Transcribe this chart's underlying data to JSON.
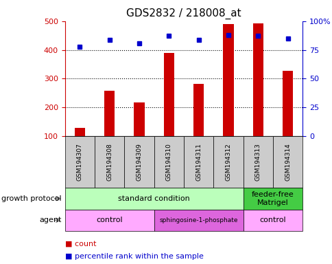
{
  "title": "GDS2832 / 218008_at",
  "samples": [
    "GSM194307",
    "GSM194308",
    "GSM194309",
    "GSM194310",
    "GSM194311",
    "GSM194312",
    "GSM194313",
    "GSM194314"
  ],
  "counts": [
    128,
    258,
    218,
    390,
    282,
    490,
    493,
    328
  ],
  "percentile_ranks": [
    78,
    84,
    81,
    87,
    84,
    88,
    87,
    85
  ],
  "ylim_left": [
    100,
    500
  ],
  "ylim_right": [
    0,
    100
  ],
  "yticks_left": [
    100,
    200,
    300,
    400,
    500
  ],
  "yticks_right": [
    0,
    25,
    50,
    75,
    100
  ],
  "ytick_labels_right": [
    "0",
    "25",
    "50",
    "75",
    "100%"
  ],
  "bar_color": "#cc0000",
  "dot_color": "#0000cc",
  "growth_protocol_groups": [
    {
      "label": "standard condition",
      "start": 0,
      "end": 6,
      "color": "#bbffbb"
    },
    {
      "label": "feeder-free\nMatrigel",
      "start": 6,
      "end": 8,
      "color": "#44cc44"
    }
  ],
  "agent_groups": [
    {
      "label": "control",
      "start": 0,
      "end": 3,
      "color": "#ffaaff"
    },
    {
      "label": "sphingosine-1-phosphate",
      "start": 3,
      "end": 6,
      "color": "#dd66dd"
    },
    {
      "label": "control",
      "start": 6,
      "end": 8,
      "color": "#ffaaff"
    }
  ],
  "row_labels": [
    "growth protocol",
    "agent"
  ],
  "background_color": "#ffffff",
  "tick_label_color_left": "#cc0000",
  "tick_label_color_right": "#0000cc",
  "grid_yticks": [
    200,
    300,
    400
  ],
  "sample_cell_color": "#cccccc"
}
